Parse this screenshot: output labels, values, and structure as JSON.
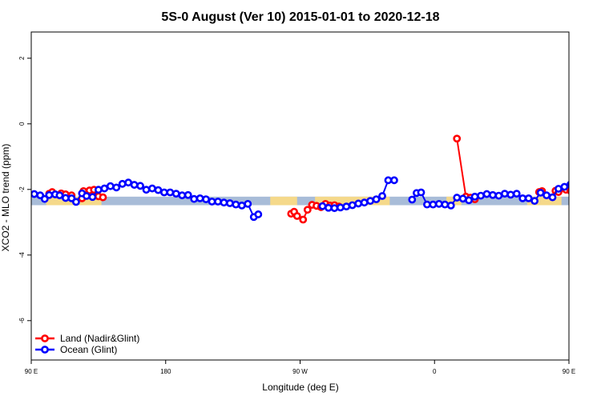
{
  "chart_data": {
    "type": "scatter",
    "title": "5S-0 August (Ver 10)   2015-01-01 to 2020-12-18",
    "xlabel": "Longitude (deg E)",
    "ylabel": "XCO2 - MLO trend (ppm)",
    "xlim": [
      90,
      450
    ],
    "ylim": [
      -7.2,
      2.8
    ],
    "xticks": [
      {
        "value": 90,
        "label": "90 E"
      },
      {
        "value": 180,
        "label": "180"
      },
      {
        "value": 270,
        "label": "90 W"
      },
      {
        "value": 360,
        "label": "0"
      },
      {
        "value": 450,
        "label": "90 E"
      },
      {
        "value": 540,
        "label": "180"
      }
    ],
    "yticks": [
      {
        "value": 2,
        "label": "2"
      },
      {
        "value": 0,
        "label": "0"
      },
      {
        "value": -2,
        "label": "-2"
      },
      {
        "value": -4,
        "label": "-4"
      },
      {
        "value": -6,
        "label": "-6"
      }
    ],
    "band": {
      "y_low": -2.48,
      "y_high": -2.22,
      "ocean_color": "#a8bcd8",
      "land_color": "#f5d98a",
      "land_segments": [
        [
          100,
          137
        ],
        [
          250,
          268
        ],
        [
          280,
          330
        ],
        [
          368,
          378
        ],
        [
          422,
          445
        ]
      ]
    },
    "legend_position": "bottom-left",
    "series": [
      {
        "name": "Land (Nadir&Glint)",
        "color": "#ff0000",
        "points": [
          [
            102,
            -2.13
          ],
          [
            104,
            -2.08
          ],
          [
            110,
            -2.12
          ],
          [
            113,
            -2.15
          ],
          [
            117,
            -2.18
          ],
          [
            124,
            -2.27
          ],
          [
            125,
            -2.05
          ],
          [
            129,
            -2.03
          ],
          [
            132,
            -2.01
          ],
          [
            135,
            -2.21
          ],
          [
            138,
            -2.24
          ],
          [
            264,
            -2.74
          ],
          [
            266,
            -2.68
          ],
          [
            268,
            -2.81
          ],
          [
            272,
            -2.92
          ],
          [
            275,
            -2.62
          ],
          [
            278,
            -2.47
          ],
          [
            281,
            -2.5
          ],
          [
            284,
            -2.54
          ],
          [
            287,
            -2.44
          ],
          [
            290,
            -2.49
          ],
          [
            293,
            -2.48
          ],
          [
            296,
            -2.52
          ],
          [
            375,
            -0.45
          ],
          [
            381,
            -2.22
          ],
          [
            384,
            -2.25
          ],
          [
            387,
            -2.3
          ],
          [
            430,
            -2.08
          ],
          [
            432,
            -2.05
          ],
          [
            441,
            -2.04
          ],
          [
            443,
            -2.08
          ],
          [
            448,
            -2.01
          ],
          [
            451,
            -2.04
          ],
          [
            456,
            -2.25
          ],
          [
            460,
            -2.22
          ]
        ]
      },
      {
        "name": "Ocean (Glint)",
        "color": "#0000ff",
        "points": [
          [
            92,
            -2.14
          ],
          [
            96,
            -2.18
          ],
          [
            99,
            -2.29
          ],
          [
            102,
            -2.17
          ],
          [
            106,
            -2.15
          ],
          [
            109,
            -2.18
          ],
          [
            113,
            -2.26
          ],
          [
            117,
            -2.27
          ],
          [
            120,
            -2.38
          ],
          [
            124,
            -2.12
          ],
          [
            127,
            -2.2
          ],
          [
            131,
            -2.23
          ],
          [
            135,
            -2.01
          ],
          [
            139,
            -1.97
          ],
          [
            143,
            -1.9
          ],
          [
            147,
            -1.94
          ],
          [
            151,
            -1.83
          ],
          [
            155,
            -1.79
          ],
          [
            159,
            -1.86
          ],
          [
            163,
            -1.89
          ],
          [
            167,
            -2.01
          ],
          [
            171,
            -1.97
          ],
          [
            175,
            -2.02
          ],
          [
            179,
            -2.09
          ],
          [
            183,
            -2.09
          ],
          [
            187,
            -2.13
          ],
          [
            191,
            -2.18
          ],
          [
            195,
            -2.17
          ],
          [
            199,
            -2.29
          ],
          [
            203,
            -2.27
          ],
          [
            207,
            -2.3
          ],
          [
            211,
            -2.37
          ],
          [
            215,
            -2.37
          ],
          [
            219,
            -2.4
          ],
          [
            223,
            -2.42
          ],
          [
            227,
            -2.46
          ],
          [
            231,
            -2.49
          ],
          [
            235,
            -2.44
          ],
          [
            239,
            -2.84
          ],
          [
            242,
            -2.76
          ],
          [
            285,
            -2.51
          ],
          [
            289,
            -2.56
          ],
          [
            293,
            -2.57
          ],
          [
            297,
            -2.55
          ],
          [
            301,
            -2.52
          ],
          [
            305,
            -2.48
          ],
          [
            309,
            -2.43
          ],
          [
            313,
            -2.4
          ],
          [
            317,
            -2.35
          ],
          [
            321,
            -2.3
          ],
          [
            325,
            -2.2
          ],
          [
            329,
            -1.72
          ],
          [
            333,
            -1.72
          ],
          [
            345,
            -2.31
          ],
          [
            348,
            -2.11
          ],
          [
            351,
            -2.09
          ],
          [
            355,
            -2.46
          ],
          [
            359,
            -2.46
          ],
          [
            363,
            -2.44
          ],
          [
            367,
            -2.46
          ],
          [
            371,
            -2.49
          ],
          [
            375,
            -2.25
          ],
          [
            379,
            -2.28
          ],
          [
            383,
            -2.33
          ],
          [
            387,
            -2.22
          ],
          [
            391,
            -2.19
          ],
          [
            395,
            -2.14
          ],
          [
            399,
            -2.17
          ],
          [
            403,
            -2.19
          ],
          [
            407,
            -2.13
          ],
          [
            411,
            -2.16
          ],
          [
            415,
            -2.13
          ],
          [
            419,
            -2.27
          ],
          [
            423,
            -2.27
          ],
          [
            427,
            -2.35
          ],
          [
            431,
            -2.1
          ],
          [
            435,
            -2.18
          ],
          [
            439,
            -2.24
          ],
          [
            443,
            -1.98
          ],
          [
            447,
            -1.92
          ],
          [
            451,
            -1.85
          ],
          [
            455,
            -1.9
          ],
          [
            459,
            -1.84
          ],
          [
            463,
            -1.82
          ]
        ]
      }
    ]
  }
}
